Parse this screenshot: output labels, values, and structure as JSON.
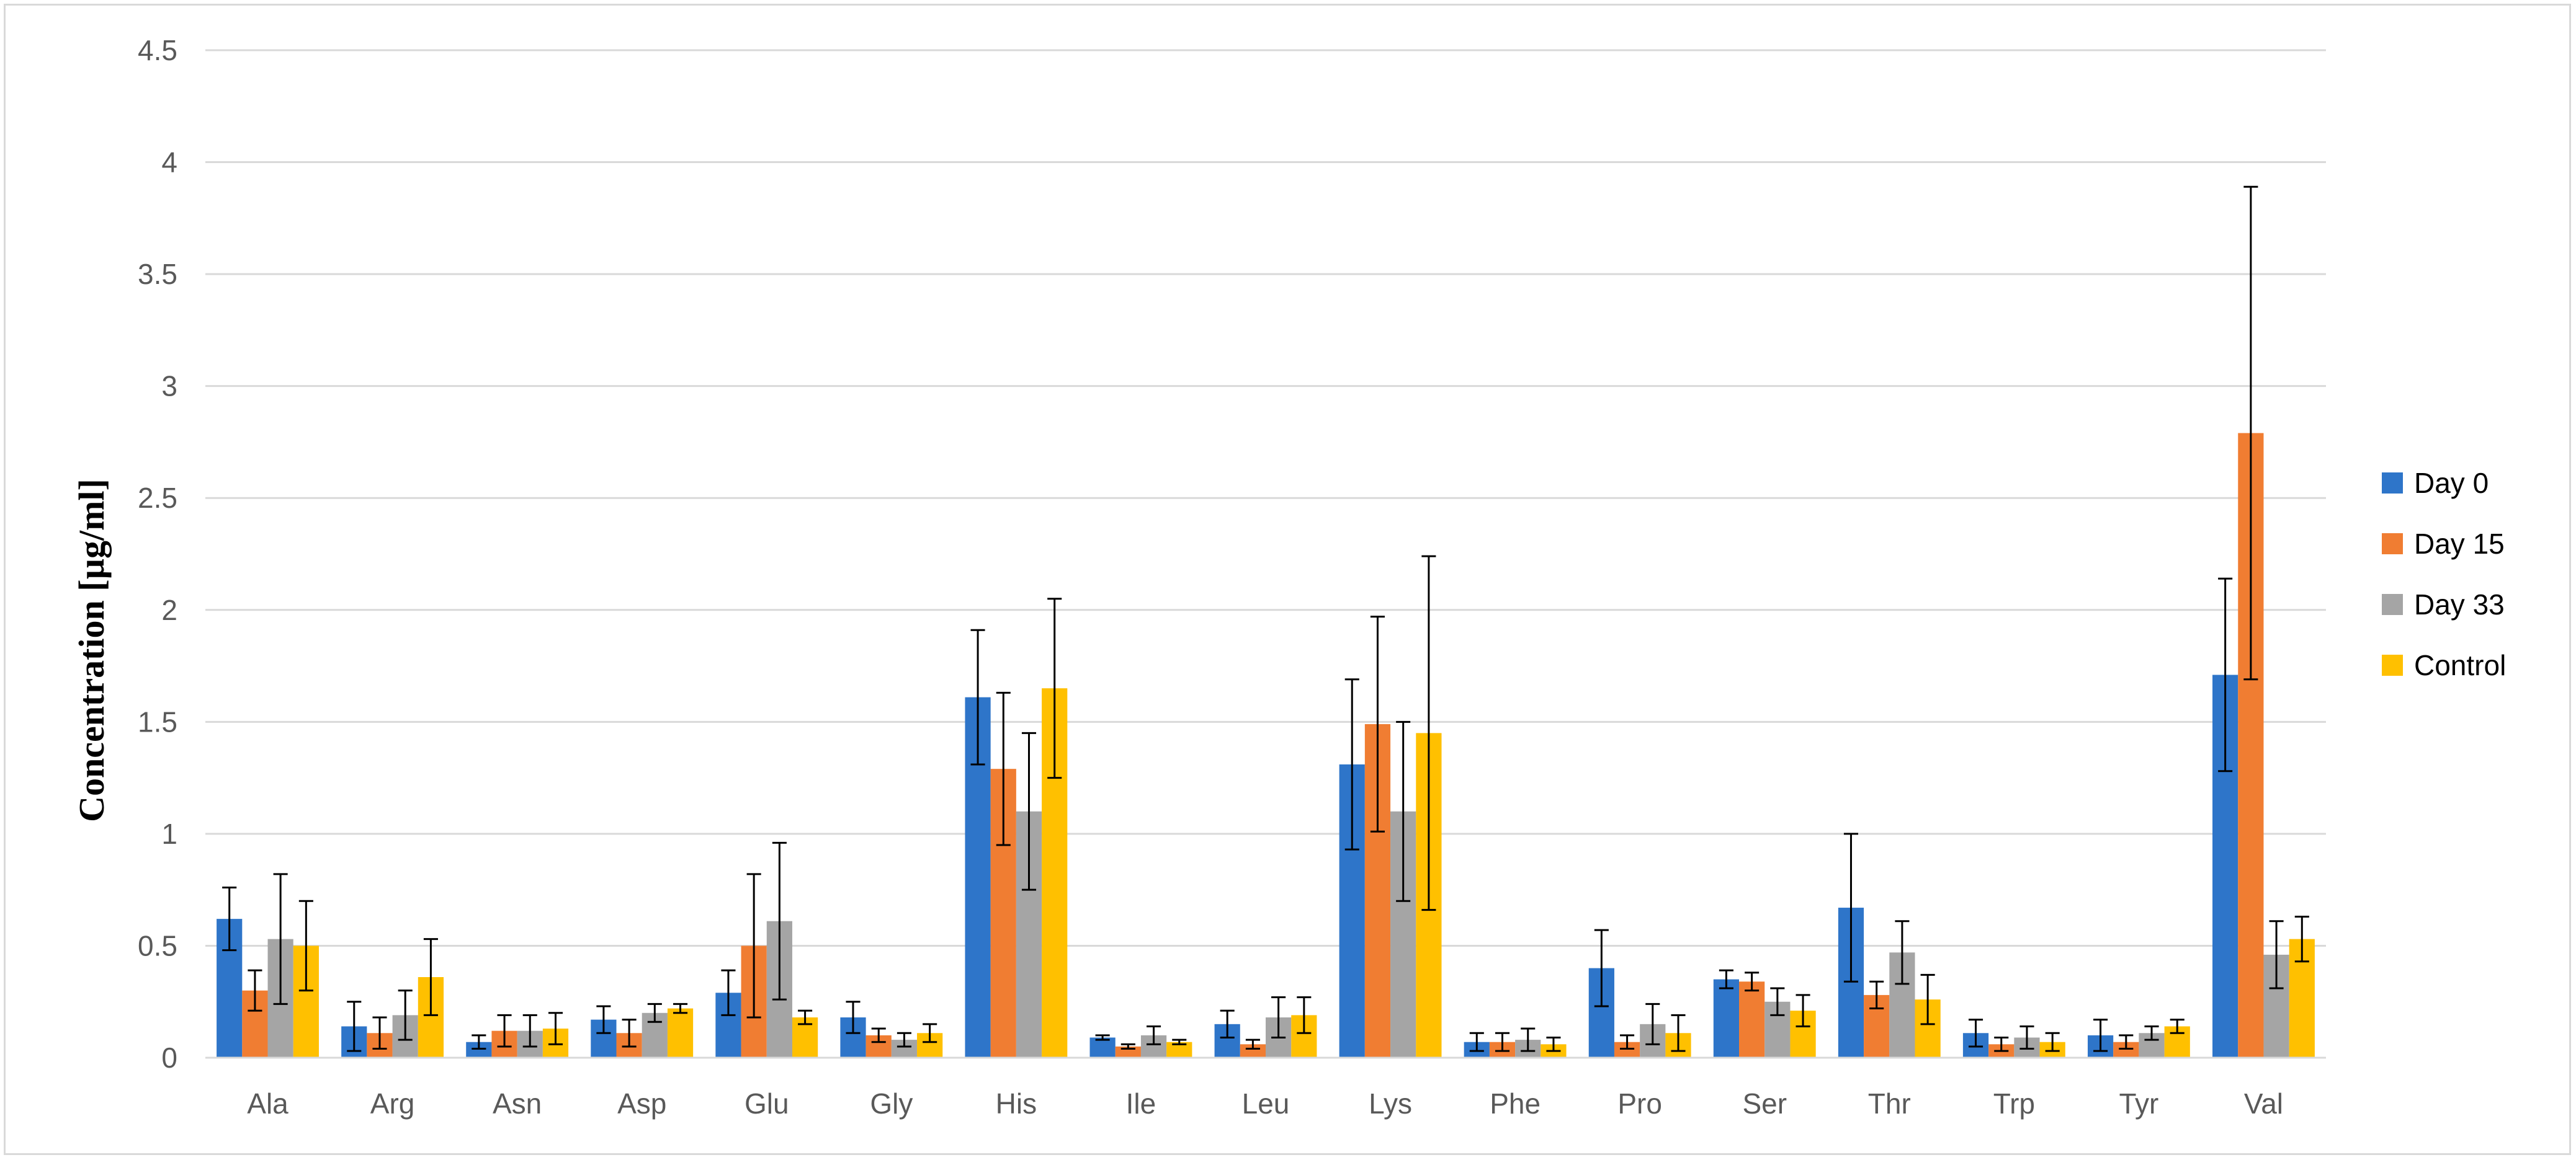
{
  "chart_data": {
    "type": "bar",
    "title": "",
    "xlabel": "",
    "ylabel": "Concentration [µg/ml]",
    "ylim": [
      0,
      4.5
    ],
    "ytick_step": 0.5,
    "ytick_labels": [
      "0",
      "0.5",
      "1",
      "1.5",
      "2",
      "2.5",
      "3",
      "3.5",
      "4",
      "4.5"
    ],
    "grid": true,
    "legend_position": "right",
    "error_bars": true,
    "categories": [
      "Ala",
      "Arg",
      "Asn",
      "Asp",
      "Glu",
      "Gly",
      "His",
      "Ile",
      "Leu",
      "Lys",
      "Phe",
      "Pro",
      "Ser",
      "Thr",
      "Trp",
      "Tyr",
      "Val"
    ],
    "series": [
      {
        "name": "Day 0",
        "color": "#2E75C9",
        "values": [
          0.62,
          0.14,
          0.07,
          0.17,
          0.29,
          0.18,
          1.61,
          0.09,
          0.15,
          1.31,
          0.07,
          0.4,
          0.35,
          0.67,
          0.11,
          0.1,
          1.71
        ],
        "errors": [
          0.14,
          0.11,
          0.03,
          0.06,
          0.1,
          0.07,
          0.3,
          0.01,
          0.06,
          0.38,
          0.04,
          0.17,
          0.04,
          0.33,
          0.06,
          0.07,
          0.43
        ]
      },
      {
        "name": "Day 15",
        "color": "#F07D32",
        "values": [
          0.3,
          0.11,
          0.12,
          0.11,
          0.5,
          0.1,
          1.29,
          0.05,
          0.06,
          1.49,
          0.07,
          0.07,
          0.34,
          0.28,
          0.06,
          0.07,
          2.79
        ],
        "errors": [
          0.09,
          0.07,
          0.07,
          0.06,
          0.32,
          0.03,
          0.34,
          0.01,
          0.02,
          0.48,
          0.04,
          0.03,
          0.04,
          0.06,
          0.03,
          0.03,
          1.1
        ]
      },
      {
        "name": "Day 33",
        "color": "#A5A5A5",
        "values": [
          0.53,
          0.19,
          0.12,
          0.2,
          0.61,
          0.08,
          1.1,
          0.1,
          0.18,
          1.1,
          0.08,
          0.15,
          0.25,
          0.47,
          0.09,
          0.11,
          0.46
        ],
        "errors": [
          0.29,
          0.11,
          0.07,
          0.04,
          0.35,
          0.03,
          0.35,
          0.04,
          0.09,
          0.4,
          0.05,
          0.09,
          0.06,
          0.14,
          0.05,
          0.03,
          0.15
        ]
      },
      {
        "name": "Control",
        "color": "#FFC000",
        "values": [
          0.5,
          0.36,
          0.13,
          0.22,
          0.18,
          0.11,
          1.65,
          0.07,
          0.19,
          1.45,
          0.06,
          0.11,
          0.21,
          0.26,
          0.07,
          0.14,
          0.53
        ],
        "errors": [
          0.2,
          0.17,
          0.07,
          0.02,
          0.03,
          0.04,
          0.4,
          0.01,
          0.08,
          0.79,
          0.03,
          0.08,
          0.07,
          0.11,
          0.04,
          0.03,
          0.1
        ]
      }
    ]
  }
}
